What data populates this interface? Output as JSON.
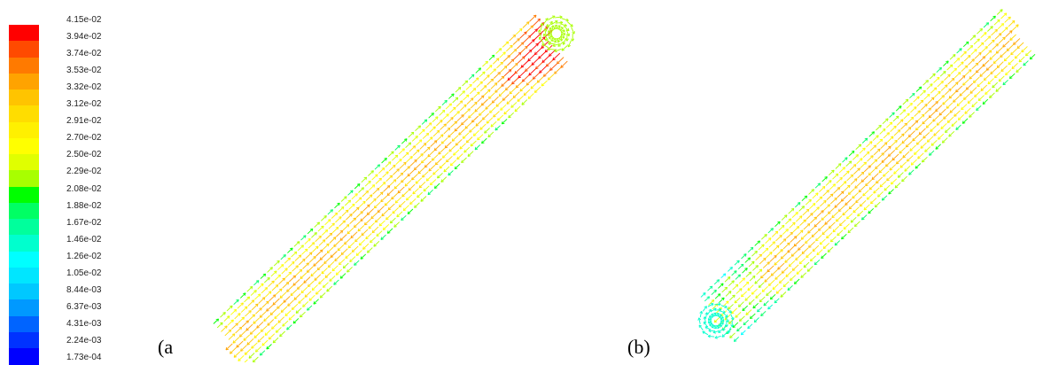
{
  "legend": {
    "labels": [
      "4.15e-02",
      "3.94e-02",
      "3.74e-02",
      "3.53e-02",
      "3.32e-02",
      "3.12e-02",
      "2.91e-02",
      "2.70e-02",
      "2.50e-02",
      "2.29e-02",
      "2.08e-02",
      "1.88e-02",
      "1.67e-02",
      "1.46e-02",
      "1.26e-02",
      "1.05e-02",
      "8.44e-03",
      "6.37e-03",
      "4.31e-03",
      "2.24e-03",
      "1.73e-04"
    ],
    "colors": [
      "#ff0000",
      "#ff4a00",
      "#ff7a00",
      "#ffa300",
      "#ffc400",
      "#ffdd00",
      "#fff000",
      "#ffff00",
      "#e0ff00",
      "#a8ff00",
      "#00ff00",
      "#00ff64",
      "#00ff9c",
      "#00ffce",
      "#00ffff",
      "#00e6ff",
      "#00c8ff",
      "#0099ff",
      "#0064ff",
      "#0032ff",
      "#0000ff"
    ]
  },
  "panels": [
    {
      "label": "(a",
      "recirculation": "top"
    },
    {
      "label": "(b)",
      "recirculation": "bottom"
    }
  ]
}
